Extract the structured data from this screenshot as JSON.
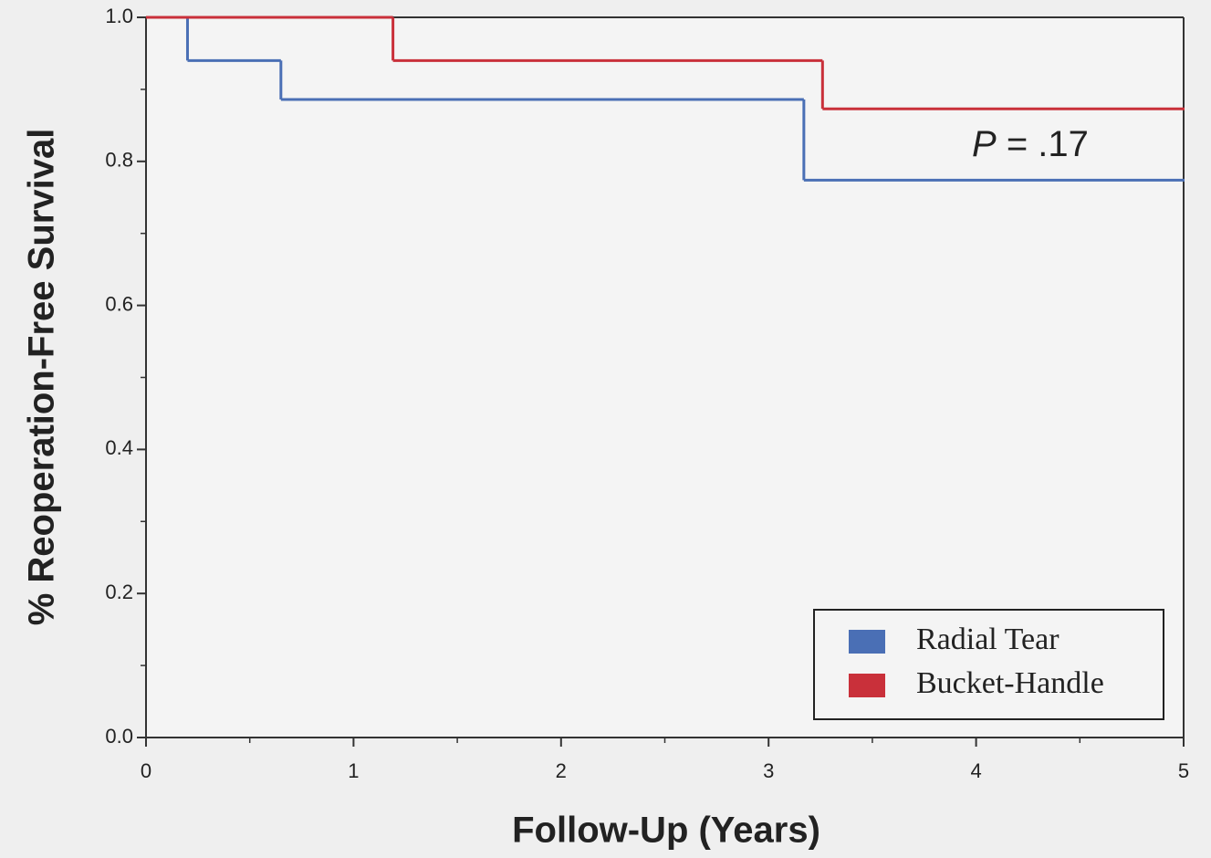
{
  "chart_data": {
    "type": "step",
    "xlabel": "Follow-Up (Years)",
    "ylabel": "% Reoperation-Free Survival",
    "annotation": {
      "italic": "P",
      "text": "= .17"
    },
    "xlim": [
      0,
      5
    ],
    "xticks": [
      0,
      1,
      2,
      3,
      4,
      5
    ],
    "ylim": [
      0,
      1
    ],
    "yticks": [
      {
        "value": 0,
        "label": "0.0"
      },
      0.2,
      0.4,
      0.6,
      0.8,
      {
        "value": 1,
        "label": "1.0"
      }
    ],
    "legend": "bottom-right",
    "series": [
      {
        "name": "Radial Tear",
        "color": "#4a6fb5",
        "x": [
          0,
          0.2,
          0.65,
          3.17,
          5
        ],
        "values": [
          1.0,
          0.94,
          0.886,
          0.774,
          0.774
        ]
      },
      {
        "name": "Bucket-Handle",
        "color": "#c9303a",
        "x": [
          0,
          1.19,
          3.26,
          5
        ],
        "values": [
          1.0,
          0.94,
          0.873,
          0.873
        ]
      }
    ]
  }
}
